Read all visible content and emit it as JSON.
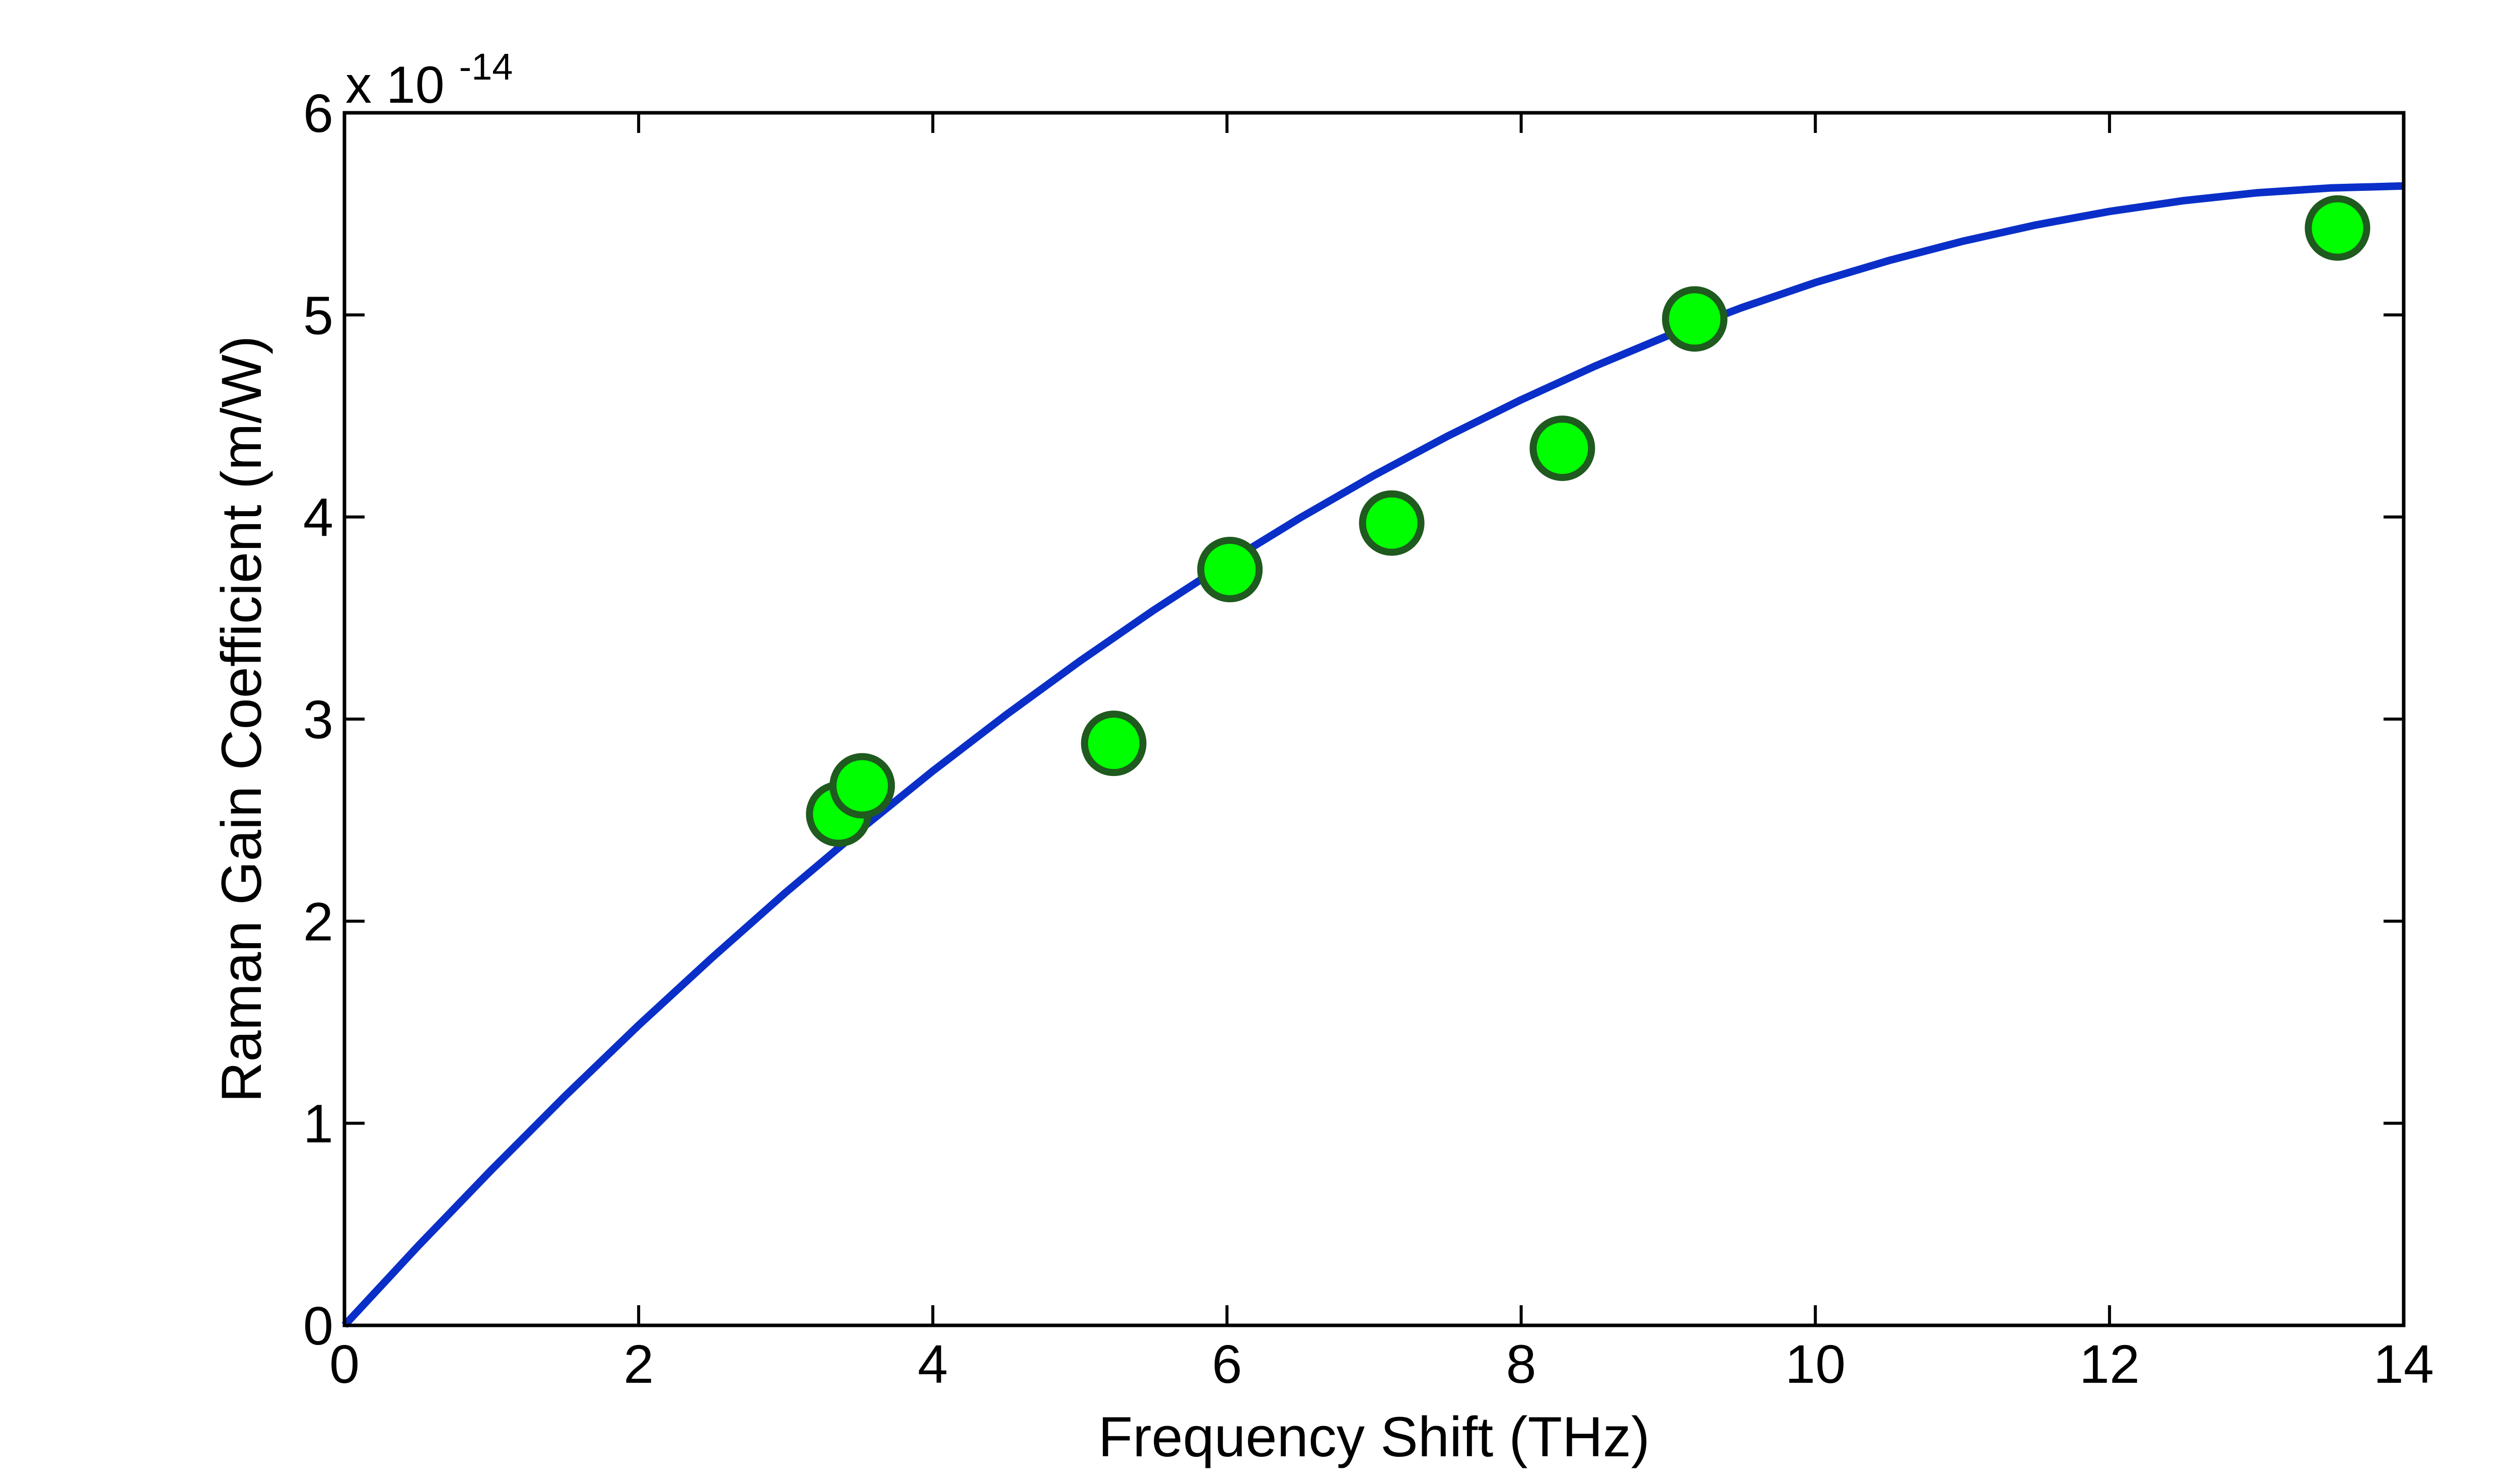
{
  "chart_data": {
    "type": "scatter",
    "title": "",
    "xlabel": "Frequency Shift (THz)",
    "ylabel": "Raman Gain Coefficient (m/W)",
    "y_scale_base": "x 10",
    "y_scale_exponent": "-14",
    "xlim": [
      0,
      14
    ],
    "ylim": [
      0,
      6
    ],
    "xticks": [
      0,
      2,
      4,
      6,
      8,
      10,
      12,
      14
    ],
    "yticks": [
      0,
      1,
      2,
      3,
      4,
      5,
      6
    ],
    "grid": false,
    "box": true,
    "series": [
      {
        "kind": "markers",
        "color": "#00ff00",
        "edge_color": "#1f5a1f",
        "points": [
          {
            "x": 3.36,
            "y": 2.53
          },
          {
            "x": 3.52,
            "y": 2.67
          },
          {
            "x": 5.23,
            "y": 2.88
          },
          {
            "x": 6.02,
            "y": 3.74
          },
          {
            "x": 7.12,
            "y": 3.97
          },
          {
            "x": 8.28,
            "y": 4.34
          },
          {
            "x": 9.18,
            "y": 4.98
          },
          {
            "x": 13.55,
            "y": 5.43
          }
        ]
      },
      {
        "kind": "line",
        "color": "#0a2fc8",
        "x": [
          0,
          0.5,
          1,
          1.5,
          2,
          2.5,
          3,
          3.5,
          4,
          4.5,
          5,
          5.5,
          6,
          6.5,
          7,
          7.5,
          8,
          8.5,
          9,
          9.5,
          10,
          10.5,
          11,
          11.5,
          12,
          12.5,
          13,
          13.5,
          14
        ],
        "y": [
          0,
          0.392,
          0.77,
          1.135,
          1.485,
          1.82,
          2.142,
          2.449,
          2.743,
          3.022,
          3.287,
          3.538,
          3.774,
          3.997,
          4.206,
          4.4,
          4.58,
          4.746,
          4.898,
          5.036,
          5.16,
          5.269,
          5.364,
          5.445,
          5.512,
          5.565,
          5.604,
          5.628,
          5.638
        ]
      }
    ]
  }
}
